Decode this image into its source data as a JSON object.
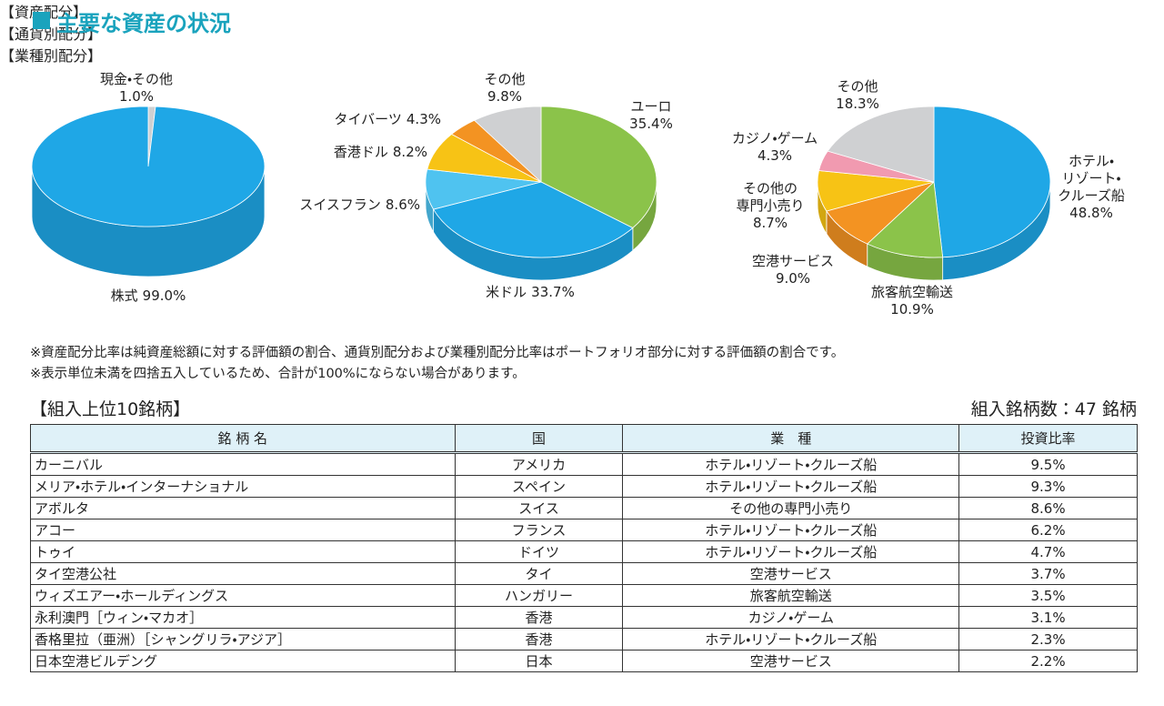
{
  "header": {
    "title": "主要な資産の状況"
  },
  "chart_data": [
    {
      "type": "pie",
      "title": "【資産配分】",
      "categories": [
        "現金・その他",
        "株式"
      ],
      "values": [
        1.0,
        99.0
      ],
      "value_labels": [
        "1.0%",
        "99.0%"
      ],
      "colors": [
        "#cfd0d2",
        "#1fa7e6"
      ]
    },
    {
      "type": "pie",
      "title": "【通貨別配分】",
      "categories": [
        "ユーロ",
        "米ドル",
        "スイスフラン",
        "香港ドル",
        "タイバーツ",
        "その他"
      ],
      "values": [
        35.4,
        33.7,
        8.6,
        8.2,
        4.3,
        9.8
      ],
      "value_labels": [
        "35.4%",
        "33.7%",
        "8.6%",
        "8.2%",
        "4.3%",
        "9.8%"
      ],
      "colors": [
        "#8bc34a",
        "#1fa7e6",
        "#4fc3f0",
        "#f7c315",
        "#f39322",
        "#cfd0d2"
      ]
    },
    {
      "type": "pie",
      "title": "【業種別配分】",
      "categories": [
        "ホテル・\nリゾート・\nクルーズ船",
        "旅客航空輸送",
        "空港サービス",
        "その他の\n専門小売り",
        "カジノ・ゲーム",
        "その他"
      ],
      "values": [
        48.8,
        10.9,
        9.0,
        8.7,
        4.3,
        18.3
      ],
      "value_labels": [
        "48.8%",
        "10.9%",
        "9.0%",
        "8.7%",
        "4.3%",
        "18.3%"
      ],
      "colors": [
        "#1fa7e6",
        "#8bc34a",
        "#f39322",
        "#f7c315",
        "#f19ab0",
        "#cfd0d2"
      ]
    }
  ],
  "notes": [
    "※資産配分比率は純資産総額に対する評価額の割合、通貨別配分および業種別配分比率はポートフォリオ部分に対する評価額の割合です。",
    "※表示単位未満を四捨五入しているため、合計が100%にならない場合があります。"
  ],
  "table": {
    "title": "【組入上位10銘柄】",
    "count": "組入銘柄数：47 銘柄",
    "header": [
      "銘 柄 名",
      "国",
      "業　種",
      "投資比率"
    ],
    "rows": [
      [
        "カーニバル",
        "アメリカ",
        "ホテル・リゾート・クルーズ船",
        "9.5%"
      ],
      [
        "メリア・ホテル・インターナショナル",
        "スペイン",
        "ホテル・リゾート・クルーズ船",
        "9.3%"
      ],
      [
        "アボルタ",
        "スイス",
        "その他の専門小売り",
        "8.6%"
      ],
      [
        "アコー",
        "フランス",
        "ホテル・リゾート・クルーズ船",
        "6.2%"
      ],
      [
        "トゥイ",
        "ドイツ",
        "ホテル・リゾート・クルーズ船",
        "4.7%"
      ],
      [
        "タイ空港公社",
        "タイ",
        "空港サービス",
        "3.7%"
      ],
      [
        "ウィズエアー・ホールディングス",
        "ハンガリー",
        "旅客航空輸送",
        "3.5%"
      ],
      [
        "永利澳門［ウィン・マカオ］",
        "香港",
        "カジノ・ゲーム",
        "3.1%"
      ],
      [
        "香格里拉（亜洲）［シャングリラ・アジア］",
        "香港",
        "ホテル・リゾート・クルーズ船",
        "2.3%"
      ],
      [
        "日本空港ビルデング",
        "日本",
        "空港サービス",
        "2.2%"
      ]
    ]
  }
}
